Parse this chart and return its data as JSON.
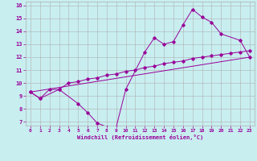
{
  "xlabel": "Windchill (Refroidissement éolien,°C)",
  "bg_color": "#c8eef0",
  "grid_color": "#b0b0b0",
  "line_color": "#990099",
  "xlim": [
    -0.5,
    23.5
  ],
  "ylim": [
    6.7,
    16.3
  ],
  "xticks": [
    0,
    1,
    2,
    3,
    4,
    5,
    6,
    7,
    8,
    9,
    10,
    11,
    12,
    13,
    14,
    15,
    16,
    17,
    18,
    19,
    20,
    21,
    22,
    23
  ],
  "yticks": [
    7,
    8,
    9,
    10,
    11,
    12,
    13,
    14,
    15,
    16
  ],
  "line1_x": [
    0,
    1,
    3,
    5,
    6,
    7,
    8,
    9,
    10,
    12,
    13,
    14,
    15,
    16,
    17,
    18,
    19,
    20,
    22,
    23
  ],
  "line1_y": [
    9.3,
    8.8,
    9.5,
    8.4,
    7.7,
    6.9,
    6.6,
    6.6,
    9.5,
    12.4,
    13.5,
    13.0,
    13.2,
    14.5,
    15.7,
    15.1,
    14.7,
    13.8,
    13.3,
    12.0
  ],
  "line2_x": [
    0,
    1,
    2,
    3,
    4,
    5,
    6,
    7,
    8,
    9,
    10,
    11,
    12,
    13,
    14,
    15,
    16,
    17,
    18,
    19,
    20,
    21,
    22,
    23
  ],
  "line2_y": [
    9.3,
    8.8,
    9.5,
    9.5,
    10.0,
    10.1,
    10.3,
    10.4,
    10.6,
    10.7,
    10.9,
    11.0,
    11.2,
    11.3,
    11.5,
    11.6,
    11.7,
    11.9,
    12.0,
    12.1,
    12.2,
    12.3,
    12.4,
    12.5
  ],
  "line3_x": [
    0,
    23
  ],
  "line3_y": [
    9.3,
    12.0
  ]
}
